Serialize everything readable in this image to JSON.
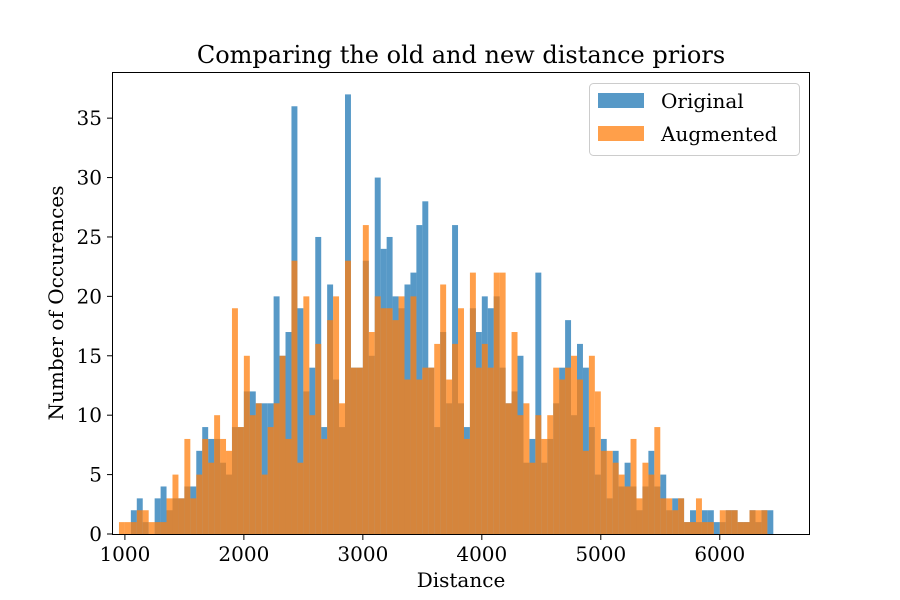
{
  "chart_data": {
    "type": "bar",
    "subtype": "histogram",
    "title": "Comparing the old and new distance priors",
    "xlabel": "Distance",
    "ylabel": "Number of Occurences",
    "xlim": [
      900,
      6750
    ],
    "ylim": [
      0,
      38.8
    ],
    "x_ticks": [
      1000,
      2000,
      3000,
      4000,
      5000,
      6000
    ],
    "y_ticks": [
      0,
      5,
      10,
      15,
      20,
      25,
      30,
      35
    ],
    "grid": false,
    "legend_position": "top-right",
    "bin_width": 50,
    "series": [
      {
        "name": "Original",
        "color": "#1f77b4",
        "opacity": 0.75,
        "bins": [
          [
            1050,
            2
          ],
          [
            1100,
            3
          ],
          [
            1150,
            1
          ],
          [
            1200,
            0
          ],
          [
            1250,
            3
          ],
          [
            1300,
            4
          ],
          [
            1350,
            2
          ],
          [
            1400,
            3
          ],
          [
            1450,
            3
          ],
          [
            1500,
            4
          ],
          [
            1550,
            4
          ],
          [
            1600,
            7
          ],
          [
            1650,
            9
          ],
          [
            1700,
            8
          ],
          [
            1750,
            8
          ],
          [
            1800,
            6
          ],
          [
            1850,
            5
          ],
          [
            1900,
            9
          ],
          [
            1950,
            9
          ],
          [
            2000,
            12
          ],
          [
            2050,
            12
          ],
          [
            2100,
            11
          ],
          [
            2150,
            11
          ],
          [
            2200,
            11
          ],
          [
            2250,
            20
          ],
          [
            2300,
            15
          ],
          [
            2350,
            17
          ],
          [
            2400,
            36
          ],
          [
            2450,
            19
          ],
          [
            2500,
            12
          ],
          [
            2550,
            14
          ],
          [
            2600,
            25
          ],
          [
            2650,
            9
          ],
          [
            2700,
            21
          ],
          [
            2750,
            13
          ],
          [
            2800,
            9
          ],
          [
            2850,
            37
          ],
          [
            2900,
            14
          ],
          [
            2950,
            14
          ],
          [
            3000,
            23
          ],
          [
            3050,
            15
          ],
          [
            3100,
            30
          ],
          [
            3150,
            24
          ],
          [
            3200,
            25
          ],
          [
            3250,
            20
          ],
          [
            3300,
            19
          ],
          [
            3350,
            21
          ],
          [
            3400,
            22
          ],
          [
            3450,
            26
          ],
          [
            3500,
            28
          ],
          [
            3550,
            14
          ],
          [
            3600,
            9
          ],
          [
            3650,
            17
          ],
          [
            3700,
            11
          ],
          [
            3750,
            26
          ],
          [
            3800,
            11
          ],
          [
            3850,
            9
          ],
          [
            3900,
            19
          ],
          [
            3950,
            17
          ],
          [
            4000,
            20
          ],
          [
            4050,
            19
          ],
          [
            4100,
            20
          ],
          [
            4150,
            14
          ],
          [
            4200,
            11
          ],
          [
            4250,
            12
          ],
          [
            4300,
            15
          ],
          [
            4350,
            6
          ],
          [
            4400,
            8
          ],
          [
            4450,
            22
          ],
          [
            4500,
            6
          ],
          [
            4550,
            8
          ],
          [
            4600,
            11
          ],
          [
            4650,
            14
          ],
          [
            4700,
            18
          ],
          [
            4750,
            10
          ],
          [
            4800,
            16
          ],
          [
            4850,
            14
          ],
          [
            4900,
            9
          ],
          [
            4950,
            5
          ],
          [
            5000,
            8
          ],
          [
            5050,
            3
          ],
          [
            5100,
            7
          ],
          [
            5150,
            4
          ],
          [
            5200,
            6
          ],
          [
            5250,
            4
          ],
          [
            5300,
            2
          ],
          [
            5350,
            4
          ],
          [
            5400,
            7
          ],
          [
            5450,
            4
          ],
          [
            5500,
            5
          ],
          [
            5550,
            2
          ],
          [
            5600,
            3
          ],
          [
            5650,
            3
          ],
          [
            5700,
            1
          ],
          [
            5750,
            2
          ],
          [
            5800,
            1
          ],
          [
            5850,
            2
          ],
          [
            5900,
            2
          ],
          [
            5950,
            1
          ],
          [
            6000,
            1
          ],
          [
            6050,
            2
          ],
          [
            6100,
            2
          ],
          [
            6150,
            1
          ],
          [
            6200,
            1
          ],
          [
            6250,
            2
          ],
          [
            6300,
            1
          ],
          [
            6350,
            2
          ],
          [
            6400,
            2
          ]
        ]
      },
      {
        "name": "Augmented",
        "color": "#ff7f0e",
        "opacity": 0.75,
        "bins": [
          [
            950,
            1
          ],
          [
            1000,
            1
          ],
          [
            1050,
            1
          ],
          [
            1100,
            2
          ],
          [
            1150,
            2
          ],
          [
            1200,
            1
          ],
          [
            1250,
            1
          ],
          [
            1300,
            1
          ],
          [
            1350,
            3
          ],
          [
            1400,
            5
          ],
          [
            1450,
            3
          ],
          [
            1500,
            8
          ],
          [
            1550,
            3
          ],
          [
            1600,
            5
          ],
          [
            1650,
            8
          ],
          [
            1700,
            6
          ],
          [
            1750,
            10
          ],
          [
            1800,
            8
          ],
          [
            1850,
            7
          ],
          [
            1900,
            19
          ],
          [
            1950,
            9
          ],
          [
            2000,
            15
          ],
          [
            2050,
            10
          ],
          [
            2100,
            11
          ],
          [
            2150,
            5
          ],
          [
            2200,
            9
          ],
          [
            2250,
            11
          ],
          [
            2300,
            15
          ],
          [
            2350,
            8
          ],
          [
            2400,
            23
          ],
          [
            2450,
            6
          ],
          [
            2500,
            20
          ],
          [
            2550,
            10
          ],
          [
            2600,
            16
          ],
          [
            2650,
            8
          ],
          [
            2700,
            18
          ],
          [
            2750,
            20
          ],
          [
            2800,
            11
          ],
          [
            2850,
            23
          ],
          [
            2900,
            14
          ],
          [
            2950,
            14
          ],
          [
            3000,
            26
          ],
          [
            3050,
            17
          ],
          [
            3100,
            20
          ],
          [
            3150,
            19
          ],
          [
            3200,
            19
          ],
          [
            3250,
            18
          ],
          [
            3300,
            20
          ],
          [
            3350,
            13
          ],
          [
            3400,
            20
          ],
          [
            3450,
            13
          ],
          [
            3500,
            14
          ],
          [
            3550,
            14
          ],
          [
            3600,
            16
          ],
          [
            3650,
            21
          ],
          [
            3700,
            13
          ],
          [
            3750,
            16
          ],
          [
            3800,
            19
          ],
          [
            3850,
            8
          ],
          [
            3900,
            22
          ],
          [
            3950,
            14
          ],
          [
            4000,
            16
          ],
          [
            4050,
            14
          ],
          [
            4100,
            22
          ],
          [
            4150,
            22
          ],
          [
            4200,
            11
          ],
          [
            4250,
            17
          ],
          [
            4300,
            10
          ],
          [
            4350,
            11
          ],
          [
            4400,
            6
          ],
          [
            4450,
            10
          ],
          [
            4500,
            8
          ],
          [
            4550,
            10
          ],
          [
            4600,
            14
          ],
          [
            4650,
            13
          ],
          [
            4700,
            14
          ],
          [
            4750,
            15
          ],
          [
            4800,
            13
          ],
          [
            4850,
            7
          ],
          [
            4900,
            15
          ],
          [
            4950,
            12
          ],
          [
            5000,
            7
          ],
          [
            5050,
            7
          ],
          [
            5100,
            6
          ],
          [
            5150,
            5
          ],
          [
            5200,
            4
          ],
          [
            5250,
            8
          ],
          [
            5300,
            3
          ],
          [
            5350,
            6
          ],
          [
            5400,
            5
          ],
          [
            5450,
            9
          ],
          [
            5500,
            3
          ],
          [
            5550,
            3
          ],
          [
            5600,
            2
          ],
          [
            5650,
            3
          ],
          [
            5700,
            1
          ],
          [
            5750,
            1
          ],
          [
            5800,
            3
          ],
          [
            5850,
            1
          ],
          [
            5900,
            1
          ],
          [
            6000,
            2
          ],
          [
            6050,
            2
          ],
          [
            6100,
            2
          ],
          [
            6150,
            1
          ],
          [
            6200,
            1
          ],
          [
            6250,
            2
          ],
          [
            6300,
            2
          ],
          [
            6350,
            2
          ]
        ]
      }
    ]
  }
}
